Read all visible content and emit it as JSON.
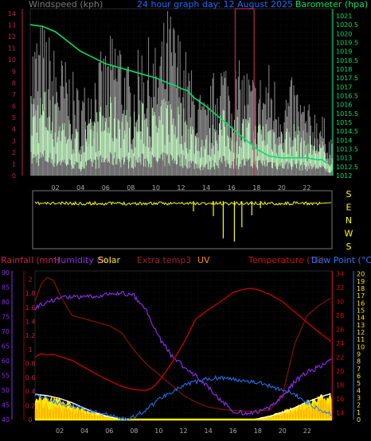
{
  "colors": {
    "wind": "#8a8a8a",
    "gust_bg": "#7e7e7e",
    "avg_wind": "#c8ffc8",
    "barometer": "#00e06a",
    "wind_axis": "#c02050",
    "dir": "#ffff00",
    "rain": "#a00020",
    "humidity": "#8a2be2",
    "solar": "#ffea00",
    "extra_temp": "#7a1010",
    "uv": "#ff8c00",
    "temperature": "#c00000",
    "dew_point": "#1e7bff"
  },
  "chart_data": [
    {
      "type": "line",
      "title": "24 hour graph day: 12 August 2025",
      "left_label": "Windspeed (kph)",
      "right_label": "Barometer (hpa)",
      "x_hours": [
        "02",
        "04",
        "06",
        "08",
        "10",
        "12",
        "14",
        "16",
        "18",
        "20",
        "22"
      ],
      "y_left_ticks": [
        "14",
        "13",
        "12",
        "11",
        "10",
        "9",
        "8",
        "7",
        "6",
        "5",
        "4",
        "3",
        "2",
        "1",
        "0"
      ],
      "y_right_ticks": [
        "1021",
        "1020.5",
        "1020",
        "1019.5",
        "1019",
        "1018.5",
        "1018",
        "1017.5",
        "1017",
        "1016.5",
        "1016",
        "1015.5",
        "1015",
        "1014.5",
        "1014",
        "1013.5",
        "1013",
        "1012.5",
        "1012"
      ],
      "ylim_left": [
        0,
        14.4
      ],
      "ylim_right": [
        1012,
        1021.4
      ],
      "barometer": {
        "x": [
          0,
          1,
          2,
          4,
          6,
          7,
          8,
          9,
          10,
          11,
          11.5,
          12,
          12.5,
          13,
          14,
          15,
          16,
          17,
          18,
          19,
          20,
          21,
          22,
          22.8,
          23.2,
          23.6
        ],
        "y": [
          1020.5,
          1020.4,
          1020.1,
          1019,
          1018.3,
          1018.1,
          1017.9,
          1017.7,
          1017.5,
          1017.2,
          1017.1,
          1016.9,
          1016.8,
          1016.4,
          1015.9,
          1015.3,
          1014.7,
          1014.1,
          1013.5,
          1013.1,
          1013,
          1013,
          1013,
          1012.9,
          1012.9,
          1012.7
        ]
      },
      "wind_max": {
        "x": [
          0,
          1,
          2,
          3,
          4,
          5,
          6,
          7,
          8,
          9,
          10,
          11,
          12,
          13,
          14,
          15,
          16,
          17,
          18,
          19,
          20,
          21,
          22,
          23,
          23.8
        ],
        "y": [
          10,
          11,
          9,
          8,
          6,
          8,
          9,
          11,
          7,
          10,
          9,
          12,
          10,
          7,
          5,
          9,
          8,
          8,
          7,
          8,
          6,
          7,
          5,
          5,
          3
        ]
      },
      "wind_avg": {
        "x": [
          0,
          1,
          2,
          3,
          4,
          5,
          6,
          7,
          8,
          9,
          10,
          11,
          12,
          13,
          14,
          15,
          16,
          17,
          18,
          19,
          20,
          21,
          22,
          23,
          23.8
        ],
        "y": [
          6,
          6.5,
          5.5,
          4.5,
          3,
          4.5,
          5.5,
          6,
          4.5,
          5.5,
          5,
          6,
          5.5,
          4,
          3,
          5,
          4.5,
          4.5,
          4,
          4.5,
          3.5,
          4,
          3,
          3,
          1.5
        ]
      },
      "wind_gust_spike": {
        "x": [
          16.3,
          17.8
        ],
        "y": 14.4
      },
      "wind_direction_labels": [
        "S",
        "E",
        "N",
        "W",
        "S"
      ]
    },
    {
      "type": "line",
      "left_label": "Rainfall (mm)",
      "left2_label": "Humidity (%)",
      "solar_label": "Solar",
      "extra_label": "Extra temp3",
      "uv_label": "UV",
      "temp_label": "Temperature (°C)",
      "dew_label": "Dew Point (°C)",
      "x_hours": [
        "02",
        "04",
        "06",
        "08",
        "10",
        "12",
        "14",
        "16",
        "18",
        "20",
        "22"
      ],
      "rain_ticks": [
        "2",
        "1.8",
        "1.6",
        "1.4",
        "1.2",
        "1",
        "0.8",
        "0.6",
        "0.4",
        "0.2",
        "0"
      ],
      "humidity_ticks": [
        "90",
        "85",
        "80",
        "75",
        "70",
        "65",
        "60",
        "55",
        "50",
        "45",
        "40"
      ],
      "temp_ticks": [
        "34",
        "32",
        "30",
        "28",
        "26",
        "24",
        "22",
        "20",
        "18",
        "16",
        "14"
      ],
      "dew_ticks": [
        "20",
        "19",
        "18",
        "17",
        "16",
        "15",
        "14",
        "13",
        "12",
        "11",
        "10",
        "9",
        "8",
        "7",
        "6",
        "5",
        "4",
        "3",
        "2",
        "1",
        "0"
      ],
      "temperature": {
        "x": [
          0,
          0.5,
          1,
          1.5,
          2,
          3,
          4,
          5,
          6,
          7,
          8,
          9,
          9.5,
          10,
          11,
          12,
          13,
          14,
          15,
          16,
          17,
          17.5,
          18,
          19,
          20,
          21,
          22,
          23,
          23.9
        ],
        "y": [
          22,
          22.5,
          22.3,
          22.4,
          22.1,
          21.5,
          20.5,
          19.5,
          18.6,
          17.8,
          17.3,
          17.2,
          17.6,
          18.5,
          21,
          24,
          27.5,
          28.8,
          30,
          31.3,
          31.8,
          31.9,
          31.7,
          31,
          30,
          28.5,
          27,
          25.5,
          24.3
        ]
      },
      "extra_temp": {
        "x": [
          0,
          0.5,
          1,
          1.5,
          2,
          3,
          4,
          5,
          6,
          7,
          8,
          9,
          10,
          11,
          12,
          13,
          14,
          15,
          16,
          17,
          18,
          19,
          20,
          21,
          22,
          23,
          23.9
        ],
        "y": [
          30,
          32.5,
          33.5,
          33,
          31,
          28,
          27.5,
          27,
          26.5,
          25.5,
          23,
          21,
          19.5,
          18,
          16.5,
          15.5,
          14.8,
          14.5,
          14.3,
          14.2,
          14.2,
          14.4,
          16.5,
          24,
          28,
          29.5,
          30.5
        ]
      },
      "humidity": {
        "x": [
          0,
          1,
          2,
          4,
          6,
          7,
          8,
          9,
          10,
          11,
          12,
          13,
          14,
          15,
          16,
          17,
          18,
          19,
          20,
          21,
          22,
          23,
          23.9
        ],
        "y": [
          78,
          80,
          81.5,
          81.5,
          82.5,
          83,
          82,
          77,
          68,
          62,
          58,
          55,
          51,
          46.5,
          43,
          42,
          42.5,
          44,
          48,
          53,
          56,
          58,
          60
        ]
      },
      "dew_point": {
        "x": [
          0,
          1,
          2,
          4,
          6,
          7,
          8,
          9,
          10,
          11,
          12,
          13,
          14,
          15,
          16,
          17,
          18,
          19,
          20,
          21,
          22,
          23,
          23.9
        ],
        "y": [
          3.5,
          2.8,
          2.2,
          1.4,
          0.6,
          0.1,
          0.3,
          1.4,
          2.8,
          3.8,
          4.6,
          5.2,
          5.6,
          5.8,
          5.5,
          5.4,
          5.1,
          4.6,
          4.1,
          3.4,
          2.4,
          1.4,
          0.8
        ]
      },
      "solar_fill": {
        "x": [
          0,
          0.5,
          1,
          2,
          3,
          4,
          5,
          6,
          6.8,
          7.3,
          17.4,
          18,
          19,
          20,
          21,
          22,
          23,
          23.9
        ],
        "y": [
          0.34,
          0.35,
          0.33,
          0.29,
          0.22,
          0.15,
          0.09,
          0.04,
          0.01,
          0,
          0,
          0.02,
          0.06,
          0.12,
          0.2,
          0.27,
          0.33,
          0.36
        ]
      },
      "solar_max": {
        "x": [
          0,
          1,
          2,
          3,
          4,
          5,
          6,
          7,
          7.2,
          17.6,
          18,
          19,
          20,
          21,
          22,
          23,
          23.9
        ],
        "y": [
          0.36,
          0.34,
          0.3,
          0.24,
          0.16,
          0.09,
          0.04,
          0.006,
          0,
          0,
          0.01,
          0.05,
          0.1,
          0.17,
          0.25,
          0.32,
          0.37
        ]
      },
      "rain_series": {
        "x": [
          0,
          24
        ],
        "y": [
          0,
          0
        ]
      }
    }
  ]
}
